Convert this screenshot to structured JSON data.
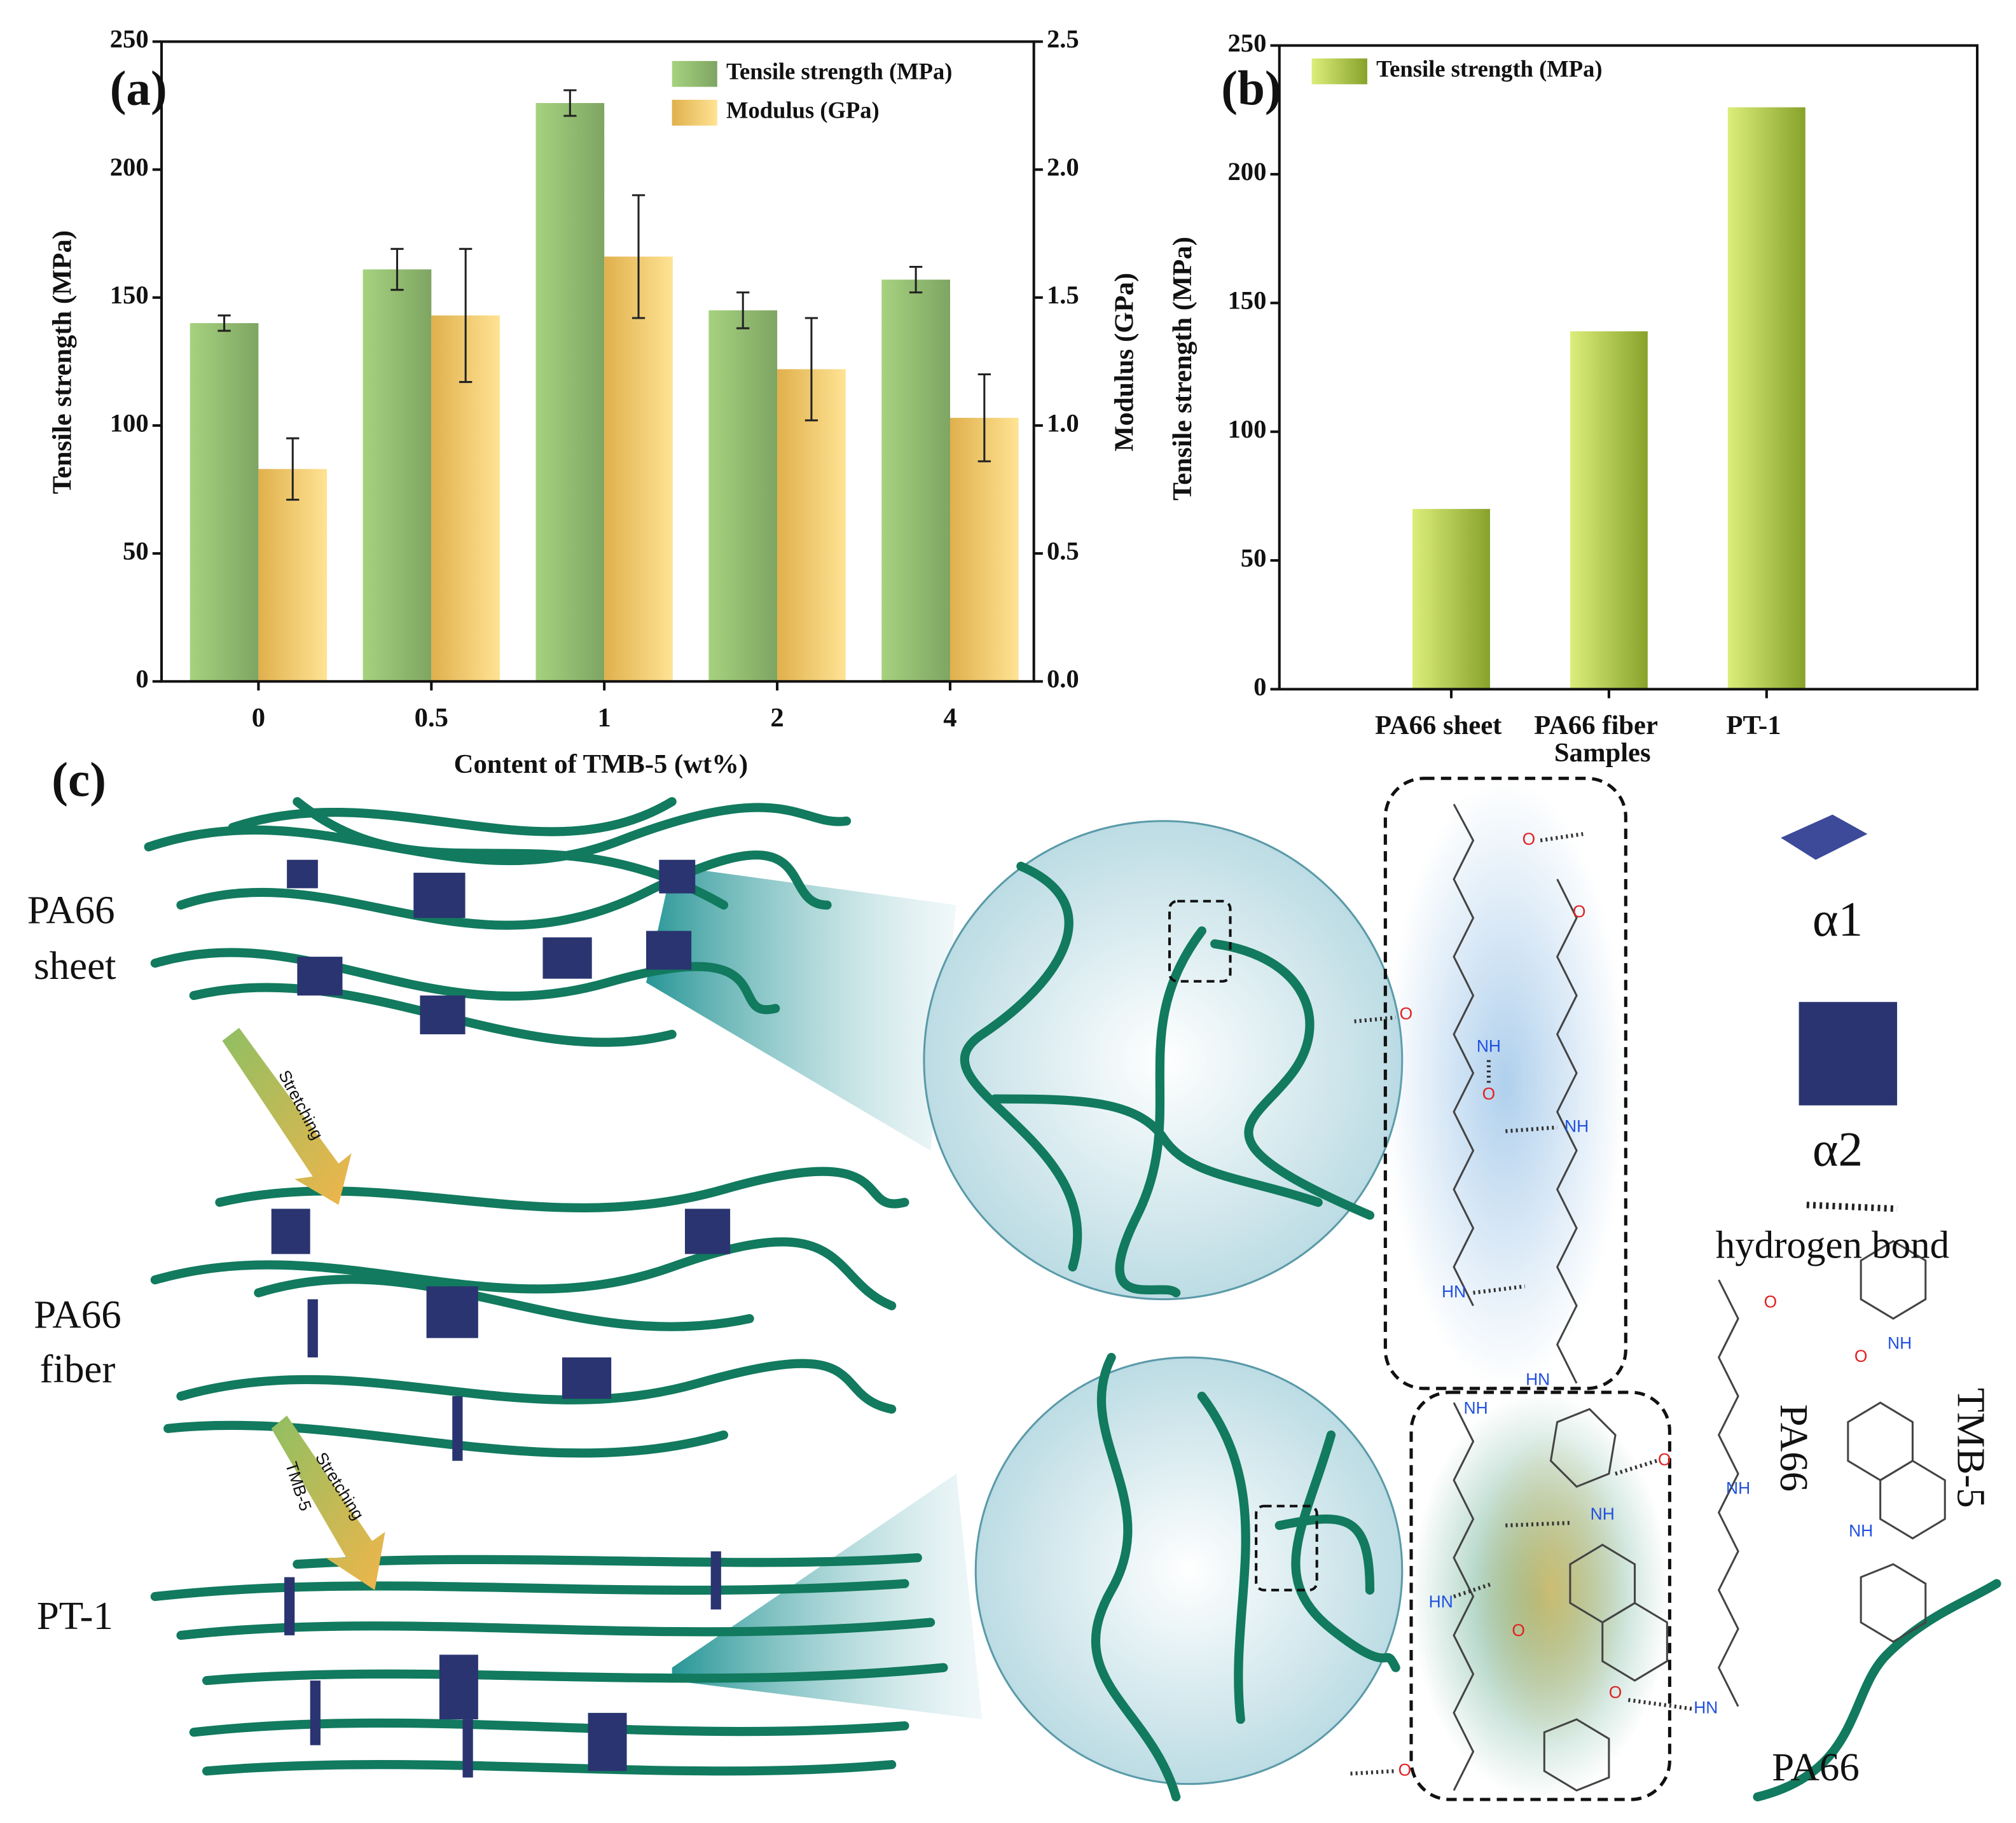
{
  "chart_data": [
    {
      "type": "bar",
      "panel_label": "(a)",
      "x_label": "Content of TMB-5 (wt%)",
      "y_label": "Tensile strength (MPa)",
      "y2_label": "Modulus (GPa)",
      "categories": [
        "0",
        "0.5",
        "1",
        "2",
        "4"
      ],
      "series": [
        {
          "name": "Tensile strength (MPa)",
          "color": "#8fba6e",
          "values": [
            140,
            161,
            226,
            145,
            157
          ],
          "errors": [
            3,
            8,
            5,
            7,
            5
          ]
        },
        {
          "name": "Modulus (GPa)",
          "color": "#f4c96c",
          "axis": "y2",
          "values": [
            0.83,
            1.43,
            1.66,
            1.22,
            1.03
          ],
          "errors": [
            0.12,
            0.26,
            0.24,
            0.2,
            0.17
          ]
        }
      ],
      "ylim": [
        0,
        250
      ],
      "yticks": [
        0,
        50,
        100,
        150,
        200,
        250
      ],
      "y2lim": [
        0,
        2.5
      ],
      "y2ticks": [
        {
          "value": 0,
          "label": "0.0"
        },
        0.5,
        {
          "value": 1,
          "label": "1.0"
        },
        1.5,
        {
          "value": 2,
          "label": "2.0"
        },
        2.5
      ],
      "legend": "upper right"
    },
    {
      "type": "bar",
      "panel_label": "(b)",
      "x_label": "Samples",
      "y_label": "Tensile strength (MPa)",
      "categories": [
        "PA66 sheet",
        "PA66 fiber",
        "PT-1"
      ],
      "series": [
        {
          "name": "Tensile strength (MPa)",
          "color": "#a9c43c",
          "values": [
            70,
            139,
            226
          ]
        }
      ],
      "ylim": [
        0,
        250
      ],
      "yticks": [
        0,
        50,
        100,
        150,
        200,
        250
      ],
      "legend": "upper left"
    }
  ],
  "diagram": {
    "panel_label": "(c)",
    "stage_labels": [
      [
        "PA66",
        "sheet"
      ],
      [
        "PA66",
        "fiber"
      ],
      [
        "PT-1"
      ]
    ],
    "arrows": [
      "Stretching",
      "Stretching",
      "TMB-5"
    ],
    "legend": [
      "α1",
      "α2",
      "hydrogen bond"
    ],
    "molecule_labels": [
      "PA66",
      "TMB-5",
      "PA66"
    ],
    "atom_labels": [
      "O",
      "O",
      "O",
      "NH",
      "O",
      "NH",
      "HN",
      "HN",
      "NH",
      "O",
      "NH",
      "NH",
      "HN",
      "O",
      "O",
      "HN",
      "O",
      "O",
      "NH",
      "NH",
      "O"
    ]
  }
}
